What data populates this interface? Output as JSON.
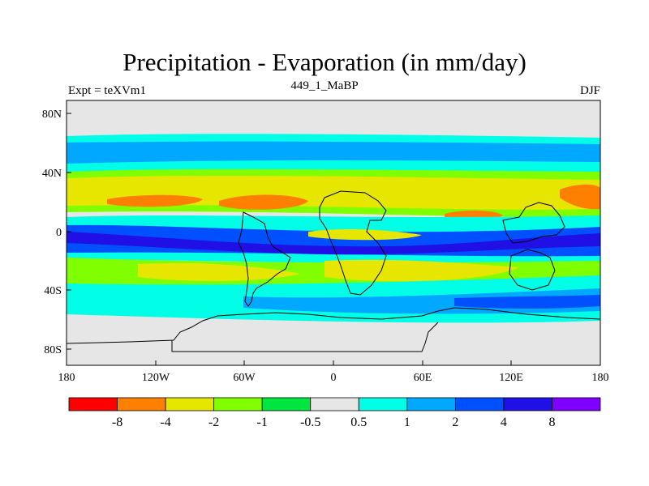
{
  "title": "Precipitation - Evaporation (in mm/day)",
  "subtitle": "449_1_MaBP",
  "left_label": "Expt = teXVm1",
  "right_label": "DJF",
  "map": {
    "lon_ticks": [
      "180",
      "120W",
      "60W",
      "0",
      "60E",
      "120E",
      "180"
    ],
    "lat_ticks": [
      "80N",
      "40N",
      "0",
      "40S",
      "80S"
    ]
  },
  "colorbar": {
    "labels": [
      "-8",
      "-4",
      "-2",
      "-1",
      "-0.5",
      "0.5",
      "1",
      "2",
      "4",
      "8"
    ],
    "colors": [
      "#ff0000",
      "#ff8000",
      "#e6e600",
      "#80ff00",
      "#00e640",
      "#e6e6e6",
      "#00ffe6",
      "#00a8ff",
      "#0050ff",
      "#2010e6",
      "#8000ff"
    ]
  },
  "colors": {
    "ocean_neutral": "#e6e6e6",
    "coast": "#000000"
  }
}
